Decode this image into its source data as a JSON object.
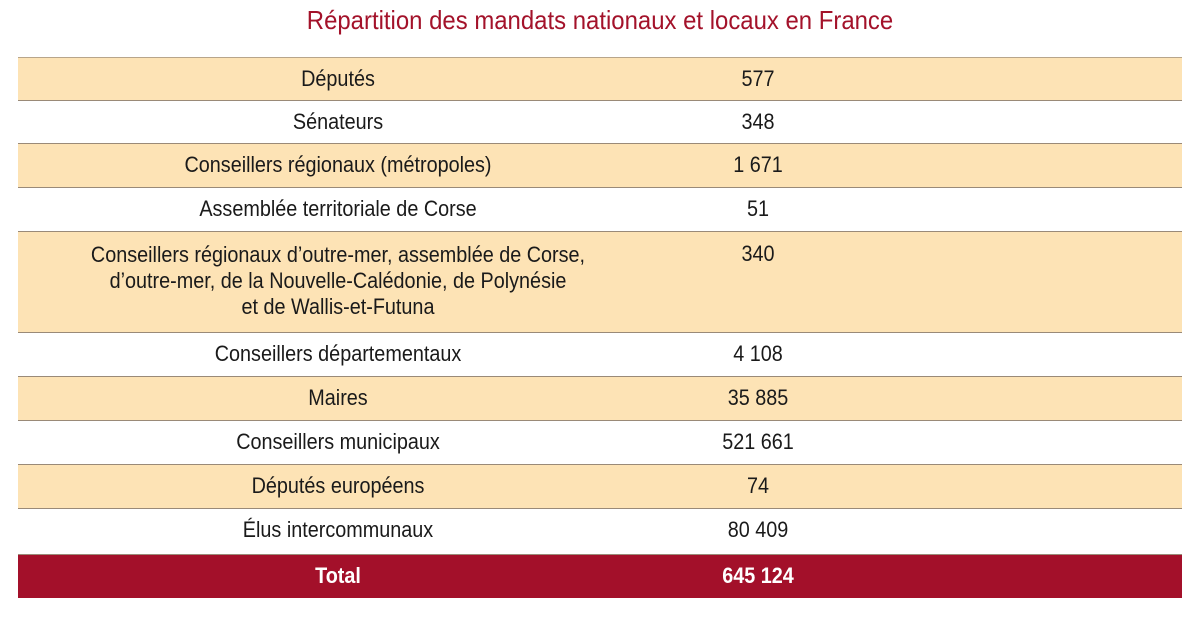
{
  "title": "Répartition des mandats nationaux et locaux en France",
  "rows": [
    {
      "label": "Députés",
      "value": "577"
    },
    {
      "label": "Sénateurs",
      "value": "348"
    },
    {
      "label": "Conseillers régionaux (métropoles)",
      "value": "1 671"
    },
    {
      "label": "Assemblée territoriale de Corse",
      "value": "51"
    },
    {
      "label_lines": [
        "Conseillers régionaux d’outre-mer, assemblée de Corse,",
        "d’outre-mer, de la Nouvelle-Calédonie, de Polynésie",
        "et de Wallis-et-Futuna"
      ],
      "value": "340"
    },
    {
      "label": "Conseillers départementaux",
      "value": "4 108"
    },
    {
      "label": "Maires",
      "value": "35 885"
    },
    {
      "label": "Conseillers municipaux",
      "value": "521 661"
    },
    {
      "label": "Députés européens",
      "value": "74"
    },
    {
      "label": "Élus intercommunaux",
      "value": "80 409"
    }
  ],
  "total": {
    "label": "Total",
    "value": "645 124"
  },
  "colors": {
    "title": "#a3122a",
    "shade": "#fde3b5",
    "total_bg": "#a3102a",
    "border": "#9a8a78"
  }
}
